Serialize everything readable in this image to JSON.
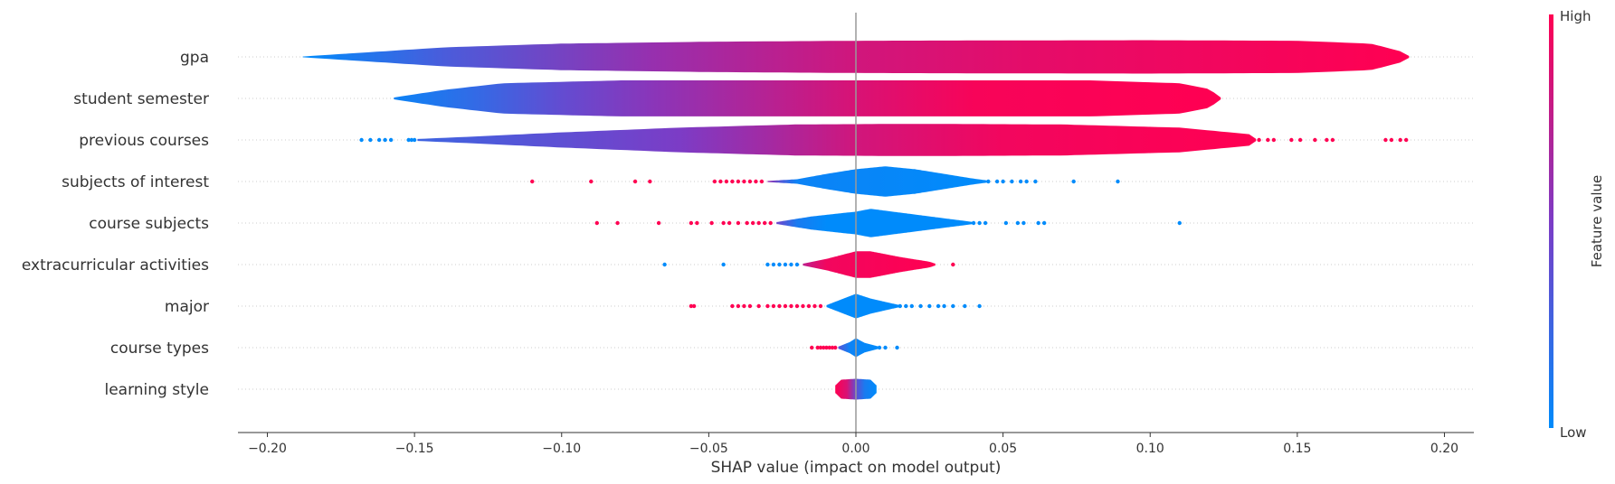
{
  "chart_data": {
    "type": "violin",
    "xlabel": "SHAP value (impact on model output)",
    "xlim": [
      -0.21,
      0.21
    ],
    "xticks": [
      -0.2,
      -0.15,
      -0.1,
      -0.05,
      0.0,
      0.05,
      0.1,
      0.15,
      0.2
    ],
    "xtick_labels": [
      "−0.20",
      "−0.15",
      "−0.10",
      "−0.05",
      "0.00",
      "0.05",
      "0.10",
      "0.15",
      "0.20"
    ],
    "colorbar": {
      "title": "Feature value",
      "high_label": "High",
      "low_label": "Low",
      "low_color": "#008bfb",
      "high_color": "#ff0052"
    },
    "features": [
      {
        "name": "gpa",
        "profile": [
          [
            -0.188,
            0.02
          ],
          [
            -0.17,
            0.2
          ],
          [
            -0.14,
            0.5
          ],
          [
            -0.1,
            0.7
          ],
          [
            -0.05,
            0.8
          ],
          [
            0.0,
            0.85
          ],
          [
            0.05,
            0.87
          ],
          [
            0.1,
            0.88
          ],
          [
            0.15,
            0.85
          ],
          [
            0.175,
            0.7
          ],
          [
            0.185,
            0.3
          ],
          [
            0.188,
            0.05
          ]
        ],
        "colors": [
          [
            -0.188,
            0.0
          ],
          [
            -0.14,
            0.3
          ],
          [
            -0.07,
            0.6
          ],
          [
            0.0,
            0.82
          ],
          [
            0.06,
            0.9
          ],
          [
            0.188,
            1.0
          ]
        ],
        "outliers": []
      },
      {
        "name": "student semester",
        "profile": [
          [
            -0.157,
            0.05
          ],
          [
            -0.14,
            0.45
          ],
          [
            -0.12,
            0.8
          ],
          [
            -0.08,
            0.95
          ],
          [
            0.0,
            0.95
          ],
          [
            0.08,
            0.95
          ],
          [
            0.11,
            0.8
          ],
          [
            0.12,
            0.5
          ],
          [
            0.124,
            0.05
          ]
        ],
        "colors": [
          [
            -0.157,
            0.05
          ],
          [
            -0.13,
            0.2
          ],
          [
            -0.1,
            0.4
          ],
          [
            -0.07,
            0.55
          ],
          [
            -0.03,
            0.72
          ],
          [
            0.0,
            0.85
          ],
          [
            0.04,
            0.97
          ],
          [
            0.124,
            1.0
          ]
        ],
        "outliers": []
      },
      {
        "name": "previous courses",
        "profile": [
          [
            -0.149,
            0.05
          ],
          [
            -0.13,
            0.18
          ],
          [
            -0.1,
            0.4
          ],
          [
            -0.06,
            0.65
          ],
          [
            -0.02,
            0.82
          ],
          [
            0.02,
            0.85
          ],
          [
            0.07,
            0.82
          ],
          [
            0.11,
            0.65
          ],
          [
            0.134,
            0.3
          ],
          [
            0.136,
            0.05
          ]
        ],
        "colors": [
          [
            -0.149,
            0.25
          ],
          [
            -0.1,
            0.38
          ],
          [
            -0.06,
            0.5
          ],
          [
            -0.03,
            0.65
          ],
          [
            0.0,
            0.82
          ],
          [
            0.05,
            0.95
          ],
          [
            0.136,
            1.0
          ]
        ],
        "outliers": [
          [
            -0.168,
            0.0
          ],
          [
            -0.165,
            0.0
          ],
          [
            -0.162,
            0.0
          ],
          [
            -0.16,
            0.0
          ],
          [
            -0.158,
            0.0
          ],
          [
            -0.152,
            0.0
          ],
          [
            -0.151,
            0.0
          ],
          [
            -0.15,
            0.0
          ],
          [
            0.135,
            1.0
          ],
          [
            0.137,
            1.0
          ],
          [
            0.14,
            1.0
          ],
          [
            0.142,
            1.0
          ],
          [
            0.148,
            1.0
          ],
          [
            0.151,
            1.0
          ],
          [
            0.156,
            1.0
          ],
          [
            0.16,
            1.0
          ],
          [
            0.162,
            1.0
          ],
          [
            0.18,
            1.0
          ],
          [
            0.182,
            1.0
          ],
          [
            0.185,
            1.0
          ],
          [
            0.187,
            1.0
          ]
        ]
      },
      {
        "name": "subjects of interest",
        "profile": [
          [
            -0.03,
            0.03
          ],
          [
            -0.02,
            0.12
          ],
          [
            -0.01,
            0.4
          ],
          [
            0.0,
            0.65
          ],
          [
            0.01,
            0.8
          ],
          [
            0.02,
            0.65
          ],
          [
            0.03,
            0.4
          ],
          [
            0.04,
            0.15
          ],
          [
            0.045,
            0.05
          ]
        ],
        "colors": [
          [
            -0.03,
            0.6
          ],
          [
            -0.025,
            0.3
          ],
          [
            -0.02,
            0.05
          ],
          [
            0.045,
            0.0
          ]
        ],
        "outliers": [
          [
            -0.11,
            1.0
          ],
          [
            -0.09,
            1.0
          ],
          [
            -0.075,
            1.0
          ],
          [
            -0.07,
            1.0
          ],
          [
            -0.048,
            1.0
          ],
          [
            -0.046,
            1.0
          ],
          [
            -0.044,
            1.0
          ],
          [
            -0.042,
            1.0
          ],
          [
            -0.04,
            1.0
          ],
          [
            -0.038,
            1.0
          ],
          [
            -0.036,
            1.0
          ],
          [
            -0.034,
            1.0
          ],
          [
            -0.032,
            1.0
          ],
          [
            0.045,
            0.0
          ],
          [
            0.048,
            0.0
          ],
          [
            0.05,
            0.0
          ],
          [
            0.053,
            0.0
          ],
          [
            0.056,
            0.0
          ],
          [
            0.058,
            0.0
          ],
          [
            0.061,
            0.0
          ],
          [
            0.074,
            0.0
          ],
          [
            0.089,
            0.0
          ]
        ]
      },
      {
        "name": "course subjects",
        "profile": [
          [
            -0.027,
            0.05
          ],
          [
            -0.015,
            0.35
          ],
          [
            0.0,
            0.6
          ],
          [
            0.005,
            0.75
          ],
          [
            0.015,
            0.55
          ],
          [
            0.03,
            0.25
          ],
          [
            0.04,
            0.05
          ]
        ],
        "colors": [
          [
            -0.027,
            0.45
          ],
          [
            -0.02,
            0.1
          ],
          [
            -0.01,
            0.0
          ],
          [
            0.04,
            0.0
          ]
        ],
        "outliers": [
          [
            -0.088,
            1.0
          ],
          [
            -0.081,
            1.0
          ],
          [
            -0.067,
            1.0
          ],
          [
            -0.056,
            1.0
          ],
          [
            -0.054,
            1.0
          ],
          [
            -0.049,
            1.0
          ],
          [
            -0.045,
            1.0
          ],
          [
            -0.043,
            1.0
          ],
          [
            -0.04,
            1.0
          ],
          [
            -0.037,
            1.0
          ],
          [
            -0.035,
            1.0
          ],
          [
            -0.033,
            1.0
          ],
          [
            -0.031,
            1.0
          ],
          [
            -0.029,
            1.0
          ],
          [
            0.04,
            0.0
          ],
          [
            0.042,
            0.0
          ],
          [
            0.044,
            0.0
          ],
          [
            0.051,
            0.0
          ],
          [
            0.055,
            0.0
          ],
          [
            0.057,
            0.0
          ],
          [
            0.062,
            0.0
          ],
          [
            0.064,
            0.0
          ],
          [
            0.11,
            0.0
          ]
        ]
      },
      {
        "name": "extracurricular activities",
        "profile": [
          [
            -0.018,
            0.05
          ],
          [
            -0.01,
            0.3
          ],
          [
            0.0,
            0.7
          ],
          [
            0.005,
            0.7
          ],
          [
            0.015,
            0.4
          ],
          [
            0.025,
            0.15
          ],
          [
            0.027,
            0.05
          ]
        ],
        "colors": [
          [
            -0.018,
            0.75
          ],
          [
            -0.01,
            0.95
          ],
          [
            0.027,
            1.0
          ]
        ],
        "outliers": [
          [
            -0.065,
            0.0
          ],
          [
            -0.045,
            0.0
          ],
          [
            -0.03,
            0.0
          ],
          [
            -0.028,
            0.0
          ],
          [
            -0.026,
            0.0
          ],
          [
            -0.024,
            0.0
          ],
          [
            -0.022,
            0.0
          ],
          [
            -0.02,
            0.0
          ],
          [
            0.033,
            1.0
          ]
        ]
      },
      {
        "name": "major",
        "profile": [
          [
            -0.01,
            0.05
          ],
          [
            -0.005,
            0.35
          ],
          [
            0.0,
            0.65
          ],
          [
            0.005,
            0.4
          ],
          [
            0.012,
            0.15
          ],
          [
            0.015,
            0.05
          ]
        ],
        "colors": [
          [
            -0.01,
            0.0
          ],
          [
            0.015,
            0.0
          ]
        ],
        "outliers": [
          [
            -0.056,
            1.0
          ],
          [
            -0.055,
            1.0
          ],
          [
            -0.042,
            1.0
          ],
          [
            -0.04,
            1.0
          ],
          [
            -0.038,
            1.0
          ],
          [
            -0.036,
            1.0
          ],
          [
            -0.033,
            1.0
          ],
          [
            -0.03,
            1.0
          ],
          [
            -0.028,
            1.0
          ],
          [
            -0.026,
            1.0
          ],
          [
            -0.024,
            1.0
          ],
          [
            -0.022,
            1.0
          ],
          [
            -0.02,
            1.0
          ],
          [
            -0.018,
            1.0
          ],
          [
            -0.016,
            1.0
          ],
          [
            -0.014,
            1.0
          ],
          [
            -0.012,
            1.0
          ],
          [
            0.015,
            0.0
          ],
          [
            0.017,
            0.0
          ],
          [
            0.019,
            0.0
          ],
          [
            0.022,
            0.0
          ],
          [
            0.025,
            0.0
          ],
          [
            0.028,
            0.0
          ],
          [
            0.03,
            0.0
          ],
          [
            0.033,
            0.0
          ],
          [
            0.037,
            0.0
          ],
          [
            0.042,
            0.0
          ]
        ]
      },
      {
        "name": "course types",
        "profile": [
          [
            -0.006,
            0.05
          ],
          [
            -0.002,
            0.3
          ],
          [
            0.0,
            0.5
          ],
          [
            0.003,
            0.25
          ],
          [
            0.008,
            0.05
          ]
        ],
        "colors": [
          [
            -0.006,
            0.35
          ],
          [
            -0.002,
            0.05
          ],
          [
            0.008,
            0.0
          ]
        ],
        "outliers": [
          [
            -0.015,
            1.0
          ],
          [
            -0.013,
            1.0
          ],
          [
            -0.012,
            1.0
          ],
          [
            -0.011,
            1.0
          ],
          [
            -0.01,
            1.0
          ],
          [
            -0.009,
            1.0
          ],
          [
            -0.008,
            1.0
          ],
          [
            -0.007,
            1.0
          ],
          [
            0.008,
            0.0
          ],
          [
            0.01,
            0.0
          ],
          [
            0.014,
            0.0
          ]
        ]
      },
      {
        "name": "learning style",
        "profile": [
          [
            -0.007,
            0.2
          ],
          [
            -0.005,
            0.5
          ],
          [
            0.0,
            0.55
          ],
          [
            0.005,
            0.5
          ],
          [
            0.007,
            0.2
          ]
        ],
        "colors": [
          [
            -0.007,
            1.0
          ],
          [
            -0.003,
            0.85
          ],
          [
            0.0,
            0.4
          ],
          [
            0.003,
            0.1
          ],
          [
            0.007,
            0.0
          ]
        ],
        "outliers": []
      }
    ]
  }
}
